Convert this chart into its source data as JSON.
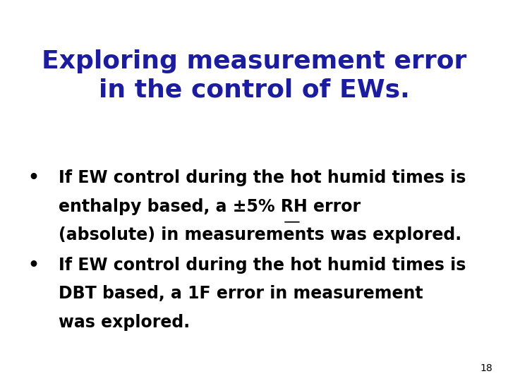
{
  "title_line1": "Exploring measurement error",
  "title_line2": "in the control of EWs.",
  "title_color": "#1c1c9e",
  "title_fontsize": 26,
  "body_fontsize": 17,
  "body_color": "#000000",
  "background_color": "#ffffff",
  "bullet1_line1": "If EW control during the hot humid times is",
  "bullet1_line2_pre": "enthalpy based, a ",
  "bullet1_line2_pm": "±",
  "bullet1_line2_post": "5% RH error",
  "bullet1_line3": "(absolute) in measurements was explored.",
  "bullet2_line1": "If EW control during the hot humid times is",
  "bullet2_line2": "DBT based, a 1F error in measurement",
  "bullet2_line3": "was explored.",
  "slide_number": "18",
  "slide_number_fontsize": 10,
  "font_family": "Arial"
}
